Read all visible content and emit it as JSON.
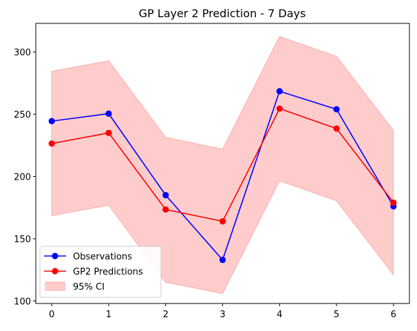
{
  "chart_data": {
    "type": "line",
    "title": "GP Layer 2 Prediction - 7 Days",
    "xlabel": "",
    "ylabel": "",
    "x": [
      0,
      1,
      2,
      3,
      4,
      5,
      6
    ],
    "xticks": [
      "0",
      "1",
      "2",
      "3",
      "4",
      "5",
      "6"
    ],
    "yticks": [
      100,
      150,
      200,
      250,
      300
    ],
    "xlim": [
      -0.28,
      6.28
    ],
    "ylim": [
      98,
      323
    ],
    "grid": false,
    "legend_position": "lower-left",
    "series": [
      {
        "name": "Observations",
        "color": "#0000ff",
        "values": [
          244.5,
          250.5,
          185,
          133,
          268.5,
          254,
          176
        ]
      },
      {
        "name": "GP2 Predictions",
        "color": "#ff0000",
        "values": [
          226.5,
          235,
          173.5,
          164,
          254.5,
          238.5,
          179
        ]
      }
    ],
    "confidence_band": {
      "name": "95% CI",
      "color": "#ffcccc",
      "edge_color": "#ffaaaa",
      "lower": [
        168.5,
        177,
        115,
        106,
        196.5,
        180.5,
        121
      ],
      "upper": [
        284.5,
        293,
        231.5,
        222,
        312.5,
        296.5,
        237
      ]
    }
  }
}
